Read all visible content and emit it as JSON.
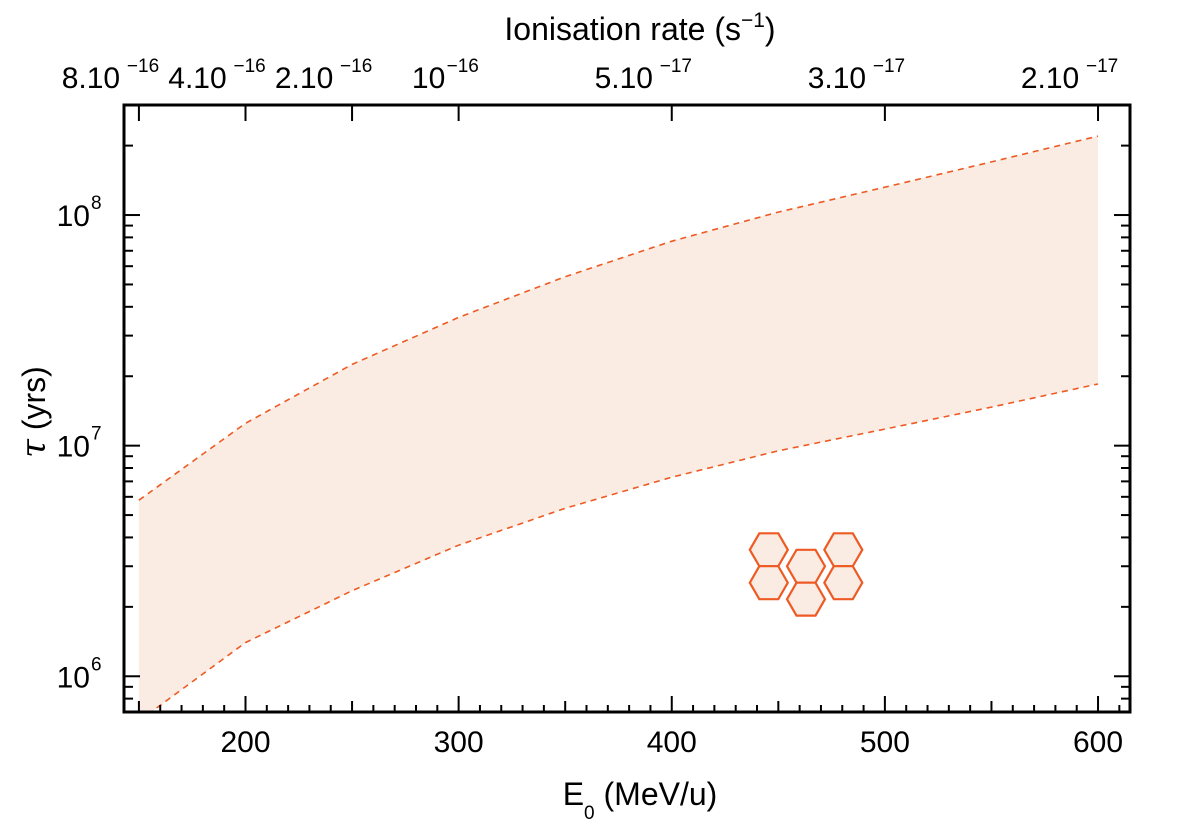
{
  "chart_data": {
    "type": "area",
    "xlabel_main": "E",
    "xlabel_sub": "0",
    "xlabel_rest": " (MeV/u)",
    "ylabel_symbol": "τ",
    "ylabel_rest": " (yrs)",
    "top_label_main": "Ionisation rate (s",
    "top_label_sup": "−1",
    "top_label_end": ")",
    "xlim": [
      143,
      615
    ],
    "ylim": [
      700000,
      300000000
    ],
    "x_ticks": [
      {
        "value": 200,
        "label": "200"
      },
      {
        "value": 300,
        "label": "300"
      },
      {
        "value": 400,
        "label": "400"
      },
      {
        "value": 500,
        "label": "500"
      },
      {
        "value": 600,
        "label": "600"
      }
    ],
    "y_ticks": [
      {
        "value": 1000000,
        "base": "10",
        "exp": "6"
      },
      {
        "value": 10000000,
        "base": "10",
        "exp": "7"
      },
      {
        "value": 100000000,
        "base": "10",
        "exp": "8"
      }
    ],
    "top_ticks": [
      {
        "x": 150,
        "base": "8.10",
        "exp": "−16"
      },
      {
        "x": 200,
        "base": "4.10",
        "exp": "−16"
      },
      {
        "x": 250,
        "base": "2.10",
        "exp": "−16"
      },
      {
        "x": 300,
        "base": "10",
        "exp": "−16"
      },
      {
        "x": 400,
        "base": "5.10",
        "exp": "−17"
      },
      {
        "x": 500,
        "base": "3.10",
        "exp": "−17"
      },
      {
        "x": 600,
        "base": "2.10",
        "exp": "−17"
      }
    ],
    "series": [
      {
        "name": "upper bound",
        "style": "dashed",
        "x": [
          150,
          200,
          250,
          300,
          350,
          400,
          450,
          500,
          550,
          600
        ],
        "values": [
          5800000,
          12500000,
          22500000,
          36000000,
          54000000,
          77000000,
          103000000,
          132000000,
          170000000,
          220000000
        ]
      },
      {
        "name": "lower bound",
        "style": "dashed",
        "x": [
          150,
          200,
          250,
          300,
          350,
          400,
          450,
          500,
          550,
          600
        ],
        "values": [
          640000,
          1400000,
          2350000,
          3700000,
          5350000,
          7300000,
          9500000,
          11800000,
          14700000,
          18500000
        ]
      }
    ],
    "colors": {
      "band_fill": "#faece2",
      "line": "#ee5a24",
      "marker": "#ee5a24",
      "axes": "#000000"
    },
    "marker": {
      "shape": "hexagon-cluster",
      "x": 463,
      "y": 3000000
    }
  }
}
